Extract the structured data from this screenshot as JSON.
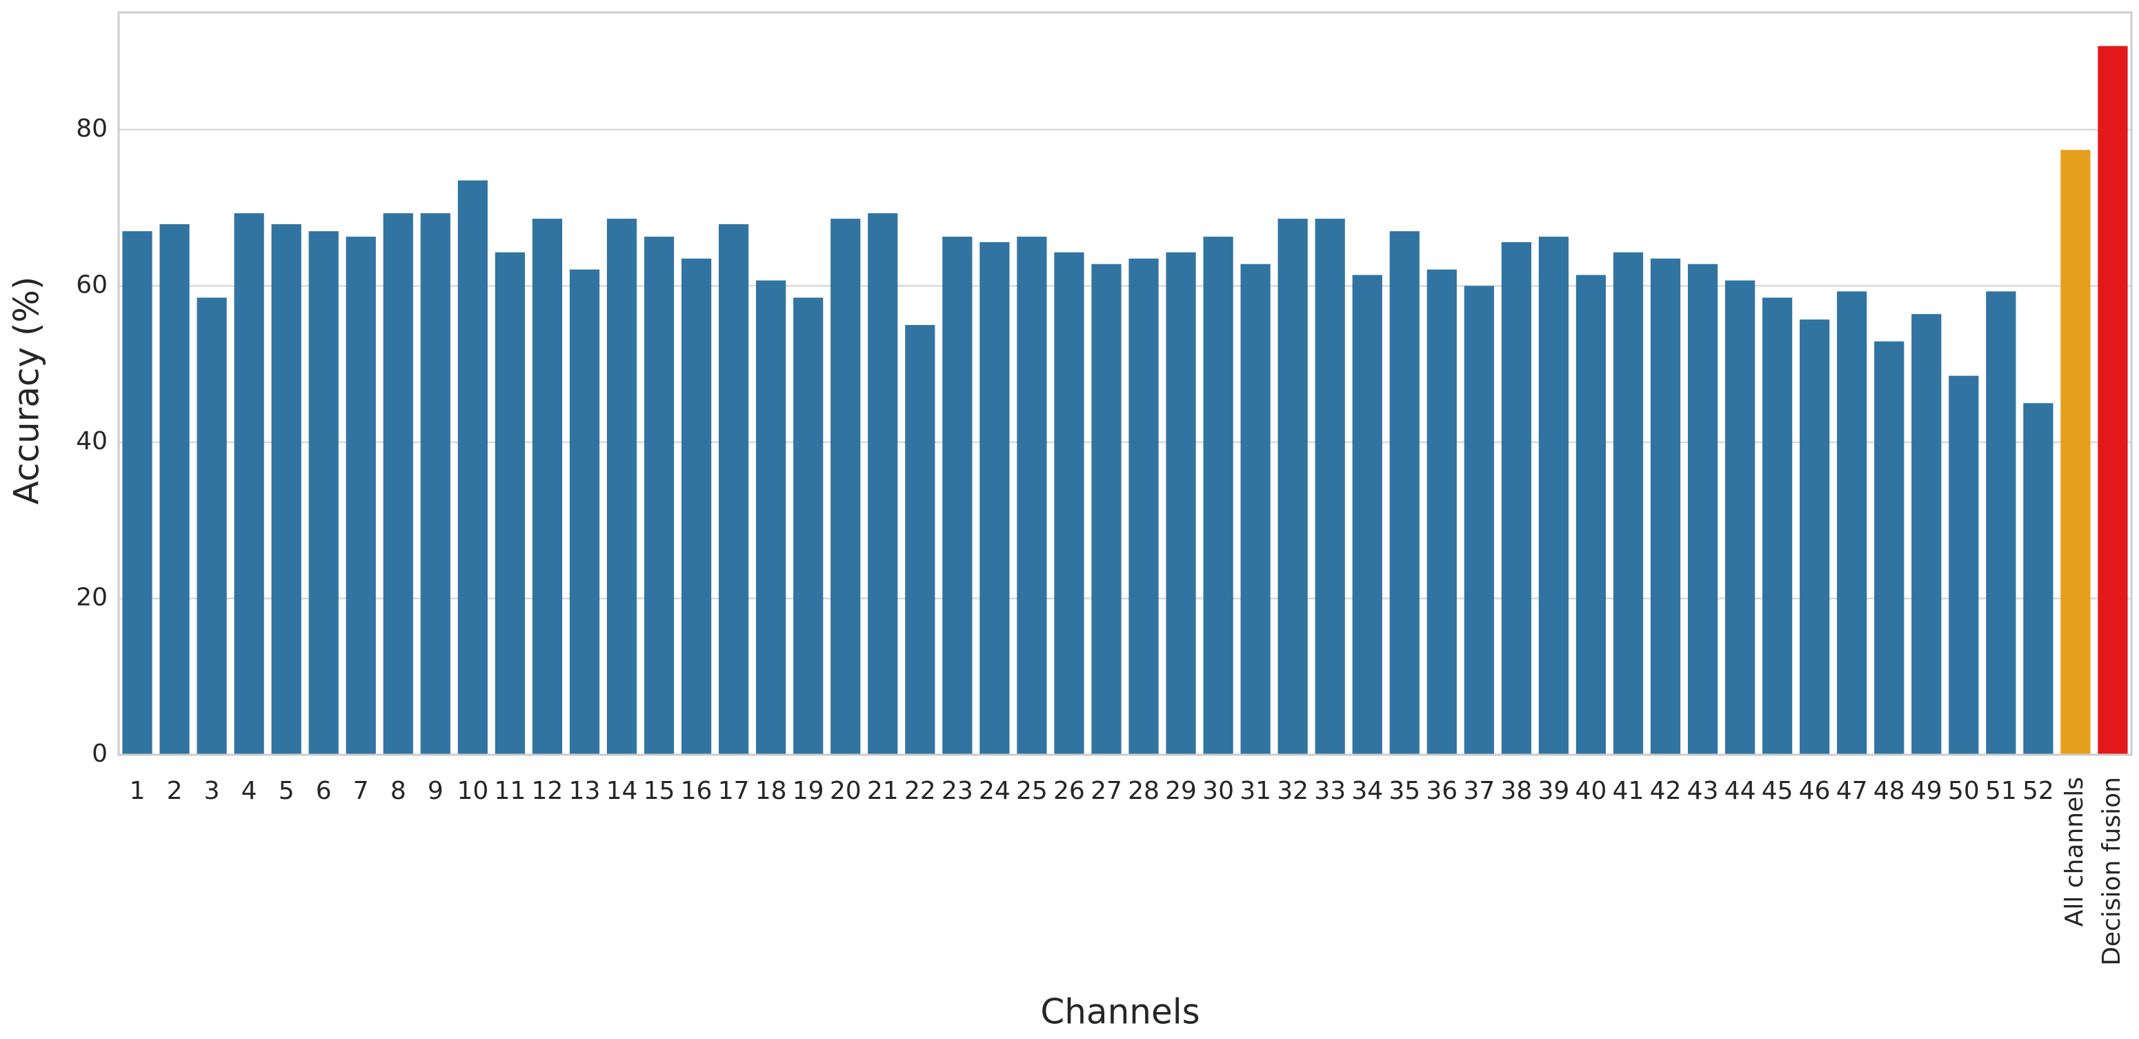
{
  "chart_data": {
    "type": "bar",
    "x_label": "Channels",
    "y_label": "Accuracy (%)",
    "categories": [
      "1",
      "2",
      "3",
      "4",
      "5",
      "6",
      "7",
      "8",
      "9",
      "10",
      "11",
      "12",
      "13",
      "14",
      "15",
      "16",
      "17",
      "18",
      "19",
      "20",
      "21",
      "22",
      "23",
      "24",
      "25",
      "26",
      "27",
      "28",
      "29",
      "30",
      "31",
      "32",
      "33",
      "34",
      "35",
      "36",
      "37",
      "38",
      "39",
      "40",
      "41",
      "42",
      "43",
      "44",
      "45",
      "46",
      "47",
      "48",
      "49",
      "50",
      "51",
      "52",
      "All channels",
      "Decision fusion"
    ],
    "values": [
      67.0,
      67.9,
      58.5,
      69.3,
      67.9,
      67.0,
      66.3,
      69.3,
      69.3,
      73.5,
      64.3,
      68.6,
      62.1,
      68.6,
      66.3,
      63.5,
      67.9,
      60.7,
      58.5,
      68.6,
      69.3,
      55.0,
      66.3,
      65.6,
      66.3,
      64.3,
      62.8,
      63.5,
      64.3,
      66.3,
      62.8,
      68.6,
      68.6,
      61.4,
      67.0,
      62.1,
      60.0,
      65.6,
      66.3,
      61.4,
      64.3,
      63.5,
      62.8,
      60.7,
      58.5,
      55.7,
      59.3,
      52.9,
      56.4,
      48.5,
      59.3,
      45.0,
      77.4,
      90.7
    ],
    "colors": [
      "#3274a1",
      "#3274a1",
      "#3274a1",
      "#3274a1",
      "#3274a1",
      "#3274a1",
      "#3274a1",
      "#3274a1",
      "#3274a1",
      "#3274a1",
      "#3274a1",
      "#3274a1",
      "#3274a1",
      "#3274a1",
      "#3274a1",
      "#3274a1",
      "#3274a1",
      "#3274a1",
      "#3274a1",
      "#3274a1",
      "#3274a1",
      "#3274a1",
      "#3274a1",
      "#3274a1",
      "#3274a1",
      "#3274a1",
      "#3274a1",
      "#3274a1",
      "#3274a1",
      "#3274a1",
      "#3274a1",
      "#3274a1",
      "#3274a1",
      "#3274a1",
      "#3274a1",
      "#3274a1",
      "#3274a1",
      "#3274a1",
      "#3274a1",
      "#3274a1",
      "#3274a1",
      "#3274a1",
      "#3274a1",
      "#3274a1",
      "#3274a1",
      "#3274a1",
      "#3274a1",
      "#3274a1",
      "#3274a1",
      "#3274a1",
      "#3274a1",
      "#3274a1",
      "#e69f1c",
      "#e3191c"
    ],
    "ylim": [
      0,
      95
    ],
    "yticks": [
      0,
      20,
      40,
      60,
      80
    ],
    "grid": true
  }
}
